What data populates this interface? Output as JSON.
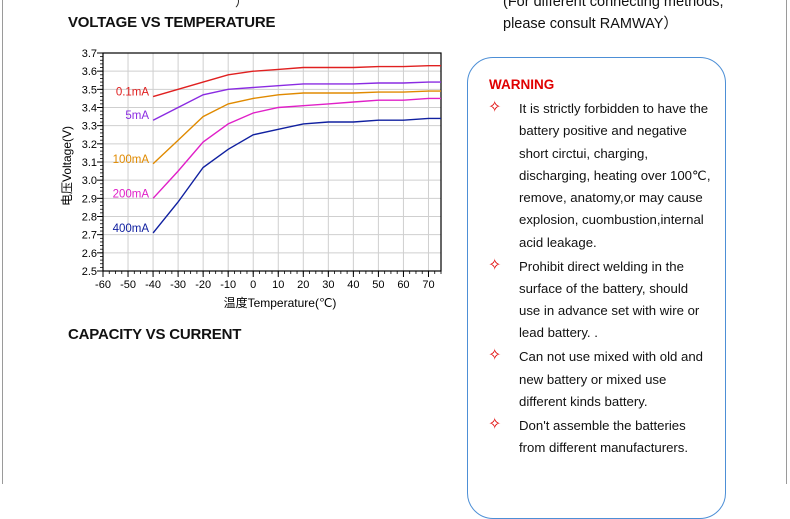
{
  "top_clip_text": "）",
  "headings": {
    "voltage": "VOLTAGE VS TEMPERATURE",
    "capacity": "CAPACITY VS CURRENT"
  },
  "consult": {
    "line1": "(For different connecting methods,",
    "line2": "please consult RAMWAY）"
  },
  "warning": {
    "title": "WARNING",
    "items": [
      "It is strictly forbidden to have the battery positive and negative short circtui, charging, discharging, heating over 100℃, remove, anatomy,or may cause explosion, cuombustion,internal acid leakage.",
      "Prohibit direct welding in the surface of the battery, should use in advance set with wire or lead battery. .",
      "Can not use mixed with old and new battery or mixed use different kinds battery.",
      "Don't assemble the batteries from different manufacturers."
    ]
  },
  "chart_data": {
    "type": "line",
    "xlabel": "温度Temperature(℃)",
    "ylabel": "电压Voltage(V)",
    "xlim": [
      -60,
      75
    ],
    "ylim": [
      2.5,
      3.7
    ],
    "x_ticks": [
      -60,
      -50,
      -40,
      -30,
      -20,
      -10,
      0,
      10,
      20,
      30,
      40,
      50,
      60,
      70
    ],
    "y_ticks": [
      2.5,
      2.6,
      2.7,
      2.8,
      2.9,
      3.0,
      3.1,
      3.2,
      3.3,
      3.4,
      3.5,
      3.6,
      3.7
    ],
    "grid": true,
    "series": [
      {
        "name": "0.1mA",
        "color": "#e02020",
        "x": [
          -40,
          -30,
          -20,
          -10,
          0,
          10,
          20,
          30,
          40,
          50,
          60,
          70,
          75
        ],
        "y": [
          3.46,
          3.5,
          3.54,
          3.58,
          3.6,
          3.61,
          3.62,
          3.62,
          3.62,
          3.625,
          3.625,
          3.63,
          3.63
        ]
      },
      {
        "name": "5mA",
        "color": "#8a2be2",
        "x": [
          -40,
          -30,
          -20,
          -10,
          0,
          10,
          20,
          30,
          40,
          50,
          60,
          70,
          75
        ],
        "y": [
          3.33,
          3.4,
          3.47,
          3.5,
          3.51,
          3.52,
          3.53,
          3.53,
          3.53,
          3.535,
          3.535,
          3.54,
          3.54
        ]
      },
      {
        "name": "100mA",
        "color": "#e08a00",
        "x": [
          -40,
          -30,
          -20,
          -10,
          0,
          10,
          20,
          30,
          40,
          50,
          60,
          70,
          75
        ],
        "y": [
          3.09,
          3.22,
          3.35,
          3.42,
          3.45,
          3.47,
          3.48,
          3.48,
          3.48,
          3.485,
          3.485,
          3.49,
          3.49
        ]
      },
      {
        "name": "200mA",
        "color": "#e020c8",
        "x": [
          -40,
          -30,
          -20,
          -10,
          0,
          10,
          20,
          30,
          40,
          50,
          60,
          70,
          75
        ],
        "y": [
          2.9,
          3.05,
          3.21,
          3.31,
          3.37,
          3.4,
          3.41,
          3.42,
          3.43,
          3.44,
          3.44,
          3.45,
          3.45
        ]
      },
      {
        "name": "400mA",
        "color": "#1020a0",
        "x": [
          -40,
          -30,
          -20,
          -10,
          0,
          10,
          20,
          30,
          40,
          50,
          60,
          70,
          75
        ],
        "y": [
          2.71,
          2.88,
          3.07,
          3.17,
          3.25,
          3.28,
          3.31,
          3.32,
          3.32,
          3.33,
          3.33,
          3.34,
          3.34
        ]
      }
    ]
  }
}
